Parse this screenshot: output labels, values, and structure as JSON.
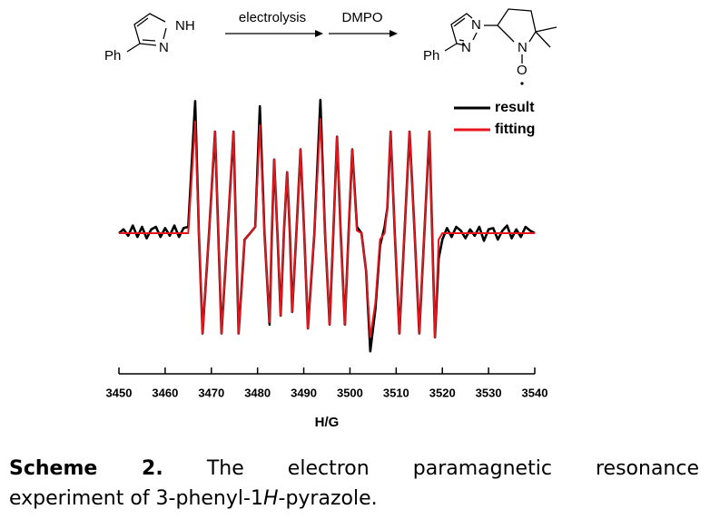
{
  "scheme": {
    "reactant_nh": "NH",
    "reactant_n": "N",
    "reactant_ph": "Ph",
    "arrow_1": "electrolysis",
    "arrow_2": "DMPO",
    "product_n1": "N",
    "product_n2": "N",
    "product_n3": "N",
    "product_o": "O",
    "product_ph": "Ph"
  },
  "chart_data": {
    "type": "line",
    "xlabel": "H/G",
    "x": [
      3450,
      3451,
      3452,
      3453,
      3454,
      3455,
      3456,
      3457,
      3458,
      3459,
      3460,
      3461,
      3462,
      3463,
      3464,
      3465,
      3466.5,
      3467.3,
      3468.1,
      3469.5,
      3470.8,
      3471.5,
      3472.2,
      3473.5,
      3474.8,
      3475.35,
      3475.9,
      3477.2,
      3478.4,
      3479.5,
      3480.5,
      3481.5,
      3482.6,
      3483.1,
      3483.6,
      3484.3,
      3485.0,
      3485.7,
      3486.4,
      3487.0,
      3487.5,
      3488.4,
      3489.3,
      3490.1,
      3490.9,
      3492.3,
      3493.6,
      3494.6,
      3495.6,
      3496.4,
      3497.2,
      3498.0,
      3498.9,
      3499.7,
      3500.5,
      3501.5,
      3502.5,
      3503.5,
      3504.4,
      3505.5,
      3506.5,
      3507.5,
      3508.1,
      3508.8,
      3509.7,
      3510.7,
      3511.8,
      3512.9,
      3514.0,
      3515.0,
      3516.1,
      3517.2,
      3517.8,
      3518.4,
      3519.2,
      3520.0,
      3521,
      3522,
      3523,
      3524,
      3525,
      3526,
      3527,
      3528,
      3529,
      3530,
      3531,
      3532,
      3533,
      3534,
      3535,
      3536,
      3537,
      3538,
      3539,
      3540
    ],
    "series": [
      {
        "name": "result",
        "color": "#000000",
        "values": [
          0,
          0.03,
          -0.02,
          0.06,
          -0.03,
          0.05,
          -0.04,
          0.03,
          0.05,
          -0.03,
          0.04,
          -0.02,
          0.06,
          -0.03,
          0.04,
          0.05,
          1.04,
          0,
          -0.79,
          0,
          0.8,
          0,
          -0.79,
          0,
          0.8,
          0,
          -0.79,
          -0.05,
          0,
          0.05,
          1.0,
          0,
          -0.72,
          0,
          0.58,
          0,
          -0.65,
          0,
          0.48,
          0,
          -0.62,
          0,
          0.66,
          0,
          -0.75,
          0,
          1.05,
          0,
          -0.72,
          0,
          0.76,
          0,
          -0.72,
          0,
          0.66,
          0.05,
          0,
          -0.3,
          -0.93,
          -0.6,
          -0.1,
          0.05,
          0.2,
          0.8,
          0,
          -0.79,
          0,
          0.8,
          0,
          -0.79,
          0,
          0.8,
          0,
          -0.82,
          -0.2,
          -0.05,
          0.04,
          -0.03,
          0.05,
          0.02,
          -0.04,
          0.03,
          -0.02,
          0.05,
          -0.06,
          0.03,
          0.04,
          -0.05,
          0.02,
          0.06,
          -0.04,
          0.03,
          -0.03,
          0.05,
          0.02,
          0
        ]
      },
      {
        "name": "fitting",
        "color": "#e8141b",
        "values": [
          0,
          0,
          0,
          0,
          0,
          0,
          0,
          0,
          0,
          0,
          0,
          0,
          0,
          0,
          0,
          0,
          0.88,
          0,
          -0.79,
          0,
          0.8,
          0,
          -0.79,
          0,
          0.8,
          0,
          -0.79,
          -0.05,
          0,
          0.05,
          0.85,
          0,
          -0.7,
          0,
          0.58,
          0,
          -0.65,
          0,
          0.48,
          0,
          -0.62,
          0,
          0.66,
          0,
          -0.75,
          0,
          0.9,
          0,
          -0.72,
          0,
          0.76,
          0,
          -0.72,
          0,
          0.66,
          0.02,
          0,
          -0.3,
          -0.82,
          -0.55,
          -0.05,
          0,
          0.2,
          0.8,
          0,
          -0.79,
          0,
          0.8,
          0,
          -0.79,
          0,
          0.8,
          0,
          -0.82,
          -0.05,
          0,
          0,
          0,
          0,
          0,
          0,
          0,
          0,
          0,
          0,
          0,
          0,
          0,
          0,
          0,
          0,
          0,
          0,
          0,
          0,
          0
        ]
      }
    ],
    "xlim": [
      3450,
      3540
    ],
    "xticks": [
      3450,
      3460,
      3470,
      3480,
      3490,
      3500,
      3510,
      3520,
      3530,
      3540
    ],
    "ylim": [
      -1.1,
      1.1
    ],
    "legend": "top-right"
  },
  "caption": {
    "label": "Scheme 2.",
    "text_1": "The electron paramagnetic resonance",
    "text_2a": "experiment of 3-phenyl-1",
    "text_2b": "H",
    "text_2c": "-pyrazole."
  }
}
